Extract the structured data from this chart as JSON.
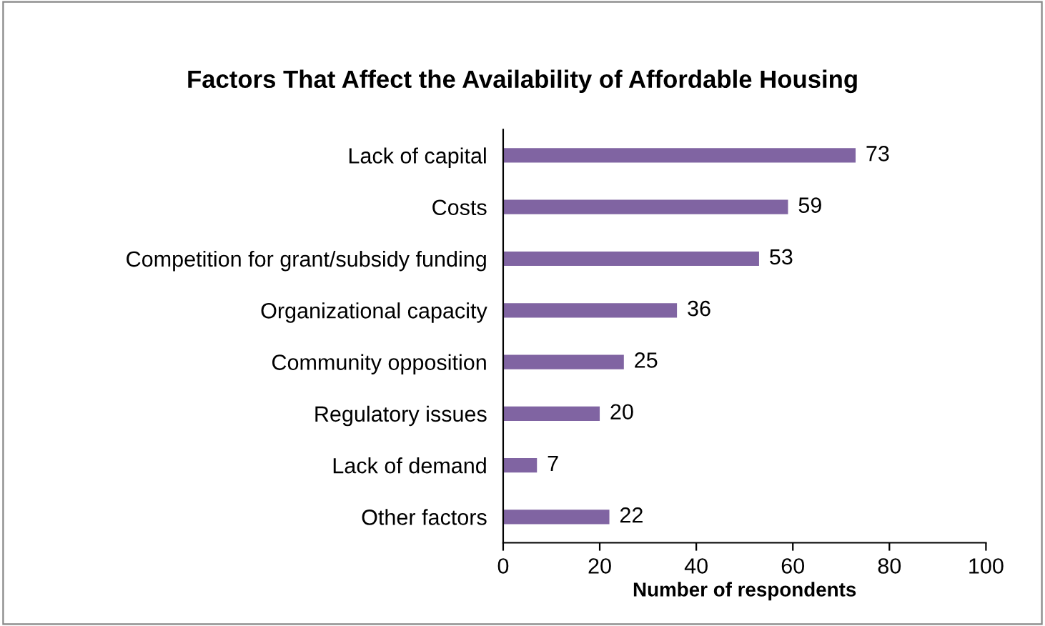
{
  "chart_data": {
    "type": "bar",
    "orientation": "horizontal",
    "title": "Factors That Affect the Availability of Affordable Housing",
    "categories": [
      "Lack of capital",
      "Costs",
      "Competition for grant/subsidy funding",
      "Organizational capacity",
      "Community opposition",
      "Regulatory issues",
      "Lack of demand",
      "Other factors"
    ],
    "values": [
      73,
      59,
      53,
      36,
      25,
      20,
      7,
      22
    ],
    "color": "#8064a2",
    "xlabel": "Number of respondents",
    "xlim": [
      0,
      100
    ],
    "xticks": [
      0,
      20,
      40,
      60,
      80,
      100
    ],
    "data_labels": true,
    "grid": false,
    "legend": false
  }
}
